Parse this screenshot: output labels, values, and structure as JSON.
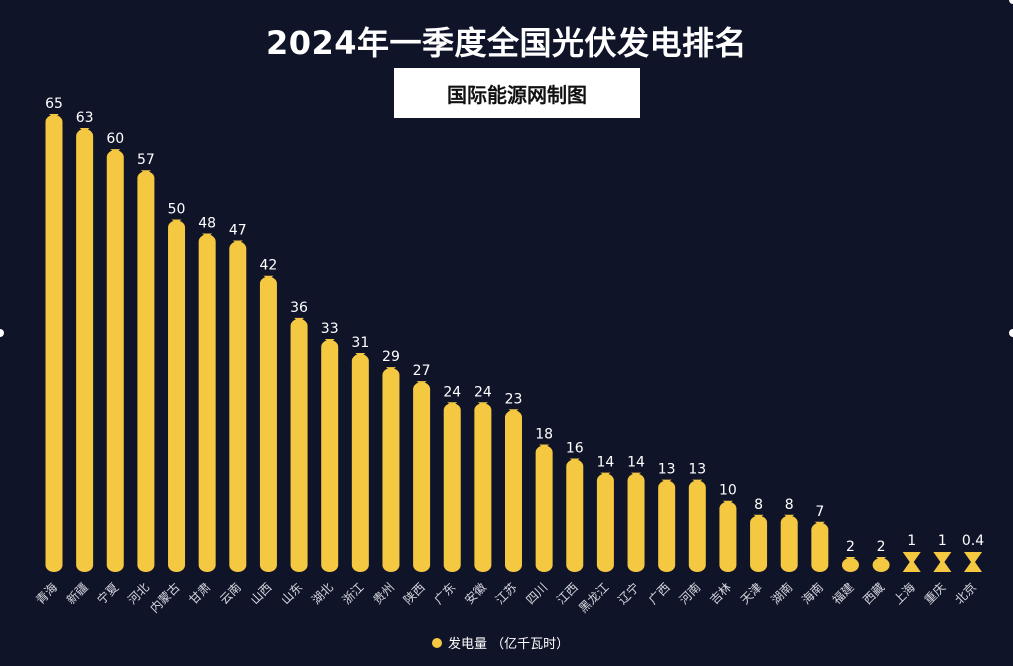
{
  "chart_data": {
    "type": "bar",
    "title": "2024年一季度全国光伏发电排名",
    "subtitle": "国际能源网制图",
    "categories": [
      "青海",
      "新疆",
      "宁夏",
      "河北",
      "内蒙古",
      "甘肃",
      "云南",
      "山西",
      "山东",
      "湖北",
      "浙江",
      "贵州",
      "陕西",
      "广东",
      "安徽",
      "江苏",
      "四川",
      "江西",
      "黑龙江",
      "辽宁",
      "广西",
      "河南",
      "吉林",
      "天津",
      "湖南",
      "海南",
      "福建",
      "西藏",
      "上海",
      "重庆",
      "北京"
    ],
    "series": [
      {
        "name": "发电量 （亿千瓦时）",
        "values": [
          65,
          63,
          60,
          57,
          50,
          48,
          47,
          42,
          36,
          33,
          31,
          29,
          27,
          24,
          24,
          23,
          18,
          16,
          14,
          14,
          13,
          13,
          10,
          8,
          8,
          7,
          2,
          2,
          1,
          1,
          0.4
        ],
        "labels": [
          "65",
          "63",
          "60",
          "57",
          "50",
          "48",
          "47",
          "42",
          "36",
          "33",
          "31",
          "29",
          "27",
          "24",
          "24",
          "23",
          "18",
          "16",
          "14",
          "14",
          "13",
          "13",
          "10",
          "8",
          "8",
          "7",
          "2",
          "2",
          "1",
          "1",
          "0.4"
        ]
      }
    ],
    "bar_color": "#F5C842",
    "background_color": "#101428",
    "ylim": [
      0,
      65
    ],
    "grid": false,
    "legend_position": "bottom-center"
  }
}
